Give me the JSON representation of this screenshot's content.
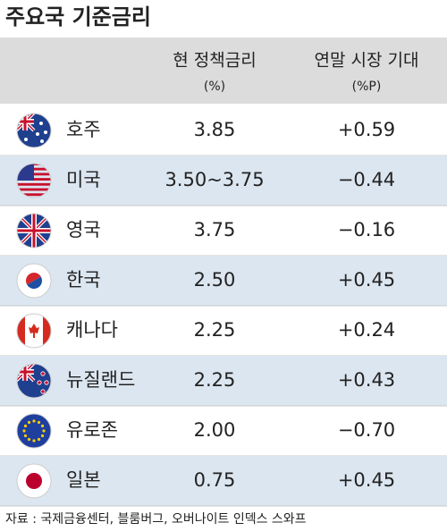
{
  "title": "주요국 기준금리",
  "table": {
    "header": [
      [
        "현 정책금리",
        "(%)"
      ],
      [
        "연말 시장 기대",
        "(%P)"
      ]
    ],
    "rows": [
      [
        "호주",
        "3.85",
        "+0.59"
      ],
      [
        "미국",
        "3.50~3.75",
        "−0.44"
      ],
      [
        "영국",
        "3.75",
        "−0.16"
      ],
      [
        "한국",
        "2.50",
        "+0.45"
      ],
      [
        "캐나다",
        "2.25",
        "+0.24"
      ],
      [
        "뉴질랜드",
        "2.25",
        "+0.43"
      ],
      [
        "유로존",
        "2.00",
        "−0.70"
      ],
      [
        "일본",
        "0.75",
        "+0.45"
      ]
    ]
  },
  "source": "자료 : 국제금융센터, 블룸버그, 오버나이트 인덱스 스와프"
}
